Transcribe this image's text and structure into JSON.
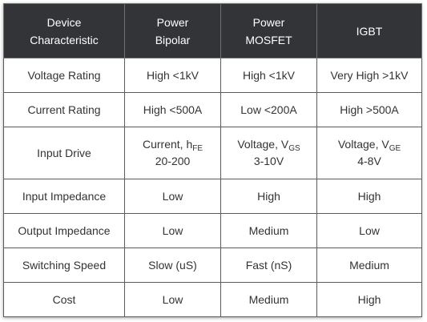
{
  "header": [
    {
      "line1": "Device",
      "line2": "Characteristic"
    },
    {
      "line1": "Power",
      "line2": "Bipolar"
    },
    {
      "line1": "Power",
      "line2": "MOSFET"
    },
    {
      "line1": "IGBT",
      "line2": ""
    }
  ],
  "rows": {
    "voltage_rating": {
      "label": "Voltage Rating",
      "bipolar": "High <1kV",
      "mosfet": "High <1kV",
      "igbt": "Very High >1kV"
    },
    "current_rating": {
      "label": "Current Rating",
      "bipolar": "High <500A",
      "mosfet": "Low <200A",
      "igbt": "High >500A"
    },
    "input_drive": {
      "label": "Input Drive",
      "bipolar": {
        "prefix": "Current, h",
        "sub": "FE",
        "line2": "20-200"
      },
      "mosfet": {
        "prefix": "Voltage, V",
        "sub": "GS",
        "line2": "3-10V"
      },
      "igbt": {
        "prefix": "Voltage, V",
        "sub": "GE",
        "line2": "4-8V"
      }
    },
    "input_impedance": {
      "label": "Input Impedance",
      "bipolar": "Low",
      "mosfet": "High",
      "igbt": "High"
    },
    "output_impedance": {
      "label": "Output Impedance",
      "bipolar": "Low",
      "mosfet": "Medium",
      "igbt": "Low"
    },
    "switching_speed": {
      "label": "Switching Speed",
      "bipolar": "Slow (uS)",
      "mosfet": "Fast (nS)",
      "igbt": "Medium"
    },
    "cost": {
      "label": "Cost",
      "bipolar": "Low",
      "mosfet": "Medium",
      "igbt": "High"
    }
  },
  "colors": {
    "header_bg": "#333438",
    "header_text": "#ffffff",
    "body_text": "#333333",
    "border": "#5a5a5a"
  }
}
